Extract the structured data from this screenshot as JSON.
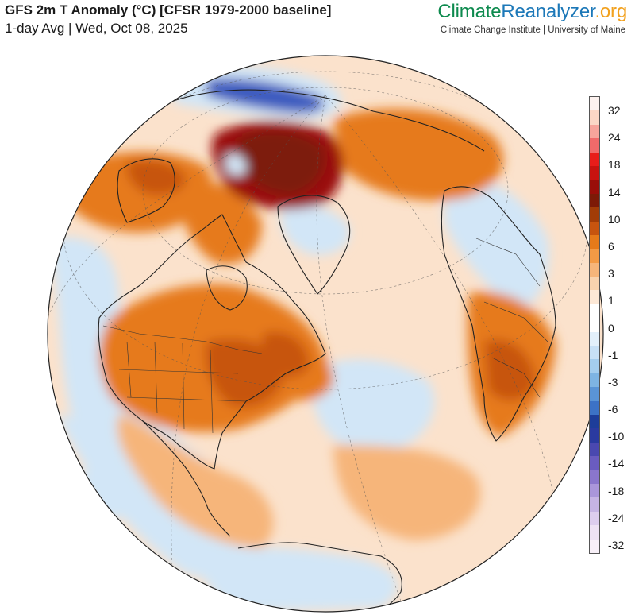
{
  "header": {
    "title": "GFS 2m T Anomaly (°C) [CFSR 1979-2000 baseline]",
    "subtitle": "1-day Avg | Wed, Oct 08, 2025"
  },
  "brand": {
    "part1": "Climate",
    "part2": "Reanalyzer",
    "part3": ".org",
    "tagline": "Climate Change Institute | University of Maine"
  },
  "legend": {
    "labels": [
      "32",
      "24",
      "18",
      "14",
      "10",
      "6",
      "3",
      "1",
      "0",
      "-1",
      "-3",
      "-6",
      "-10",
      "-14",
      "-18",
      "-24",
      "-32"
    ],
    "colors": [
      "#fdf2ef",
      "#fbd7c6",
      "#f7a49b",
      "#f06a6a",
      "#e81d1a",
      "#c8130f",
      "#9a0e09",
      "#7d1a07",
      "#a23c07",
      "#c7540f",
      "#e67a1a",
      "#f39a45",
      "#f6b57a",
      "#f9d3ae",
      "#fde8d6",
      "#ffffff",
      "#ffffff",
      "#e3f0fb",
      "#c7e0f6",
      "#a4cdee",
      "#7eb4e3",
      "#5a94d6",
      "#3c72c6",
      "#1d3d9a",
      "#2a3aa0",
      "#4a48b0",
      "#6a5cc0",
      "#8a76cc",
      "#aa96da",
      "#c6b4e4",
      "#ddcdee",
      "#eee2f4",
      "#f8f0f8"
    ]
  },
  "map": {
    "projection": "orthographic",
    "colors": {
      "ocean_base": "#fbe2cc",
      "warm_light": "#f6b57a",
      "warm_medium": "#e67a1a",
      "warm_strong": "#c7540f",
      "hot": "#9a0e09",
      "very_hot": "#7d1a07",
      "neutral": "#ffffff",
      "cool_light": "#d2e6f7",
      "cool_medium": "#8fbde8",
      "cold": "#3c5bbf",
      "very_cold": "#2a3aa0"
    }
  }
}
